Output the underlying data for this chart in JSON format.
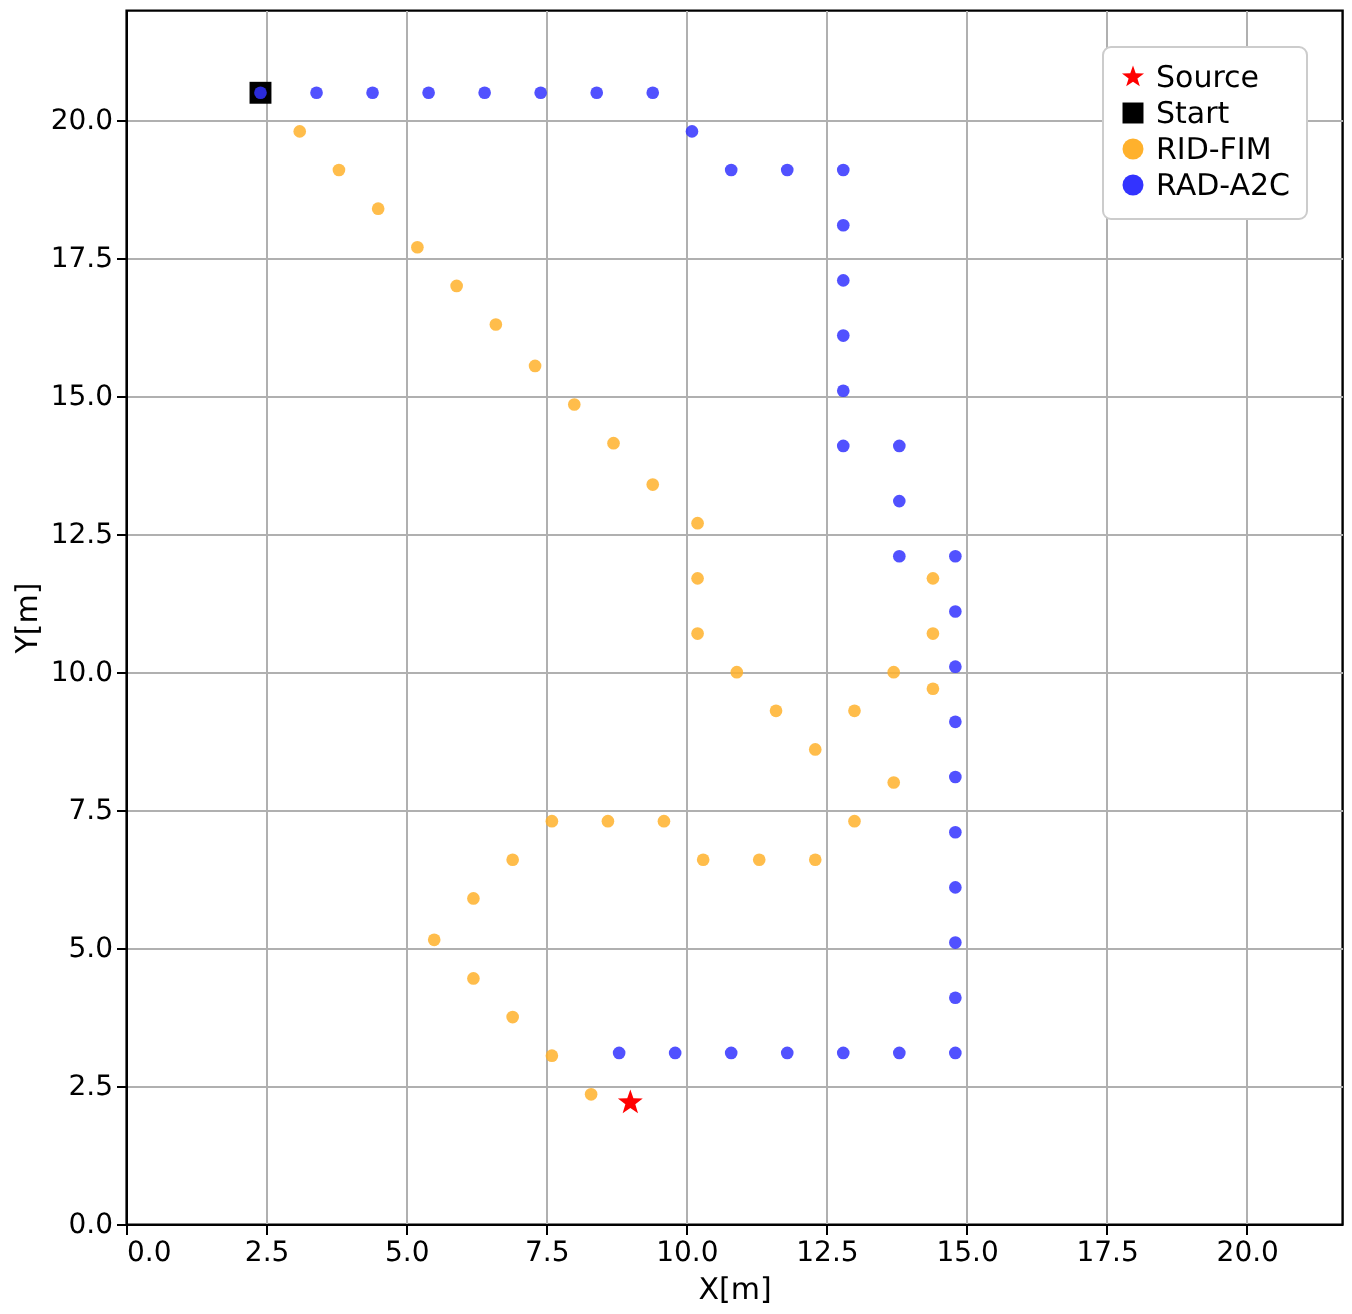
{
  "chart_data": {
    "type": "scatter",
    "xlabel": "X[m]",
    "ylabel": "Y[m]",
    "xlim": [
      0,
      21.7
    ],
    "ylim": [
      0,
      22
    ],
    "xticks": [
      {
        "value": 0,
        "label": "0.0"
      },
      2.5,
      {
        "value": 5,
        "label": "5.0"
      },
      7.5,
      {
        "value": 10,
        "label": "10.0"
      },
      12.5,
      {
        "value": 15,
        "label": "15.0"
      },
      17.5,
      {
        "value": 20,
        "label": "20.0"
      }
    ],
    "yticks": [
      {
        "value": 0,
        "label": "0.0"
      },
      2.5,
      {
        "value": 5,
        "label": "5.0"
      },
      7.5,
      {
        "value": 10,
        "label": "10.0"
      },
      12.5,
      {
        "value": 15,
        "label": "15.0"
      },
      17.5,
      {
        "value": 20,
        "label": "20.0"
      }
    ],
    "grid": true,
    "legend": "top right",
    "series": [
      {
        "name": "Source",
        "color": "#ff0000",
        "marker": "star",
        "x": [
          9.0
        ],
        "values": [
          2.2
        ]
      },
      {
        "name": "Start",
        "color": "#000000",
        "marker": "square",
        "x": [
          2.4
        ],
        "values": [
          20.5
        ]
      },
      {
        "name": "RID-FIM",
        "color": "#ffb12c",
        "marker": "circle",
        "x": [
          3.1,
          3.8,
          4.5,
          5.2,
          5.9,
          6.6,
          7.3,
          8.0,
          8.7,
          9.4,
          10.2,
          10.2,
          10.2,
          10.9,
          11.6,
          12.3,
          13.0,
          13.7,
          14.4,
          14.4,
          14.4,
          13.7,
          13.0,
          12.3,
          11.3,
          10.3,
          9.6,
          8.6,
          7.6,
          6.9,
          6.2,
          5.5,
          6.2,
          6.9,
          7.6,
          8.3
        ],
        "values": [
          19.8,
          19.1,
          18.4,
          17.7,
          17.0,
          16.3,
          15.55,
          14.85,
          14.15,
          13.4,
          12.7,
          11.7,
          10.7,
          10.0,
          9.3,
          8.6,
          9.3,
          10.0,
          10.7,
          11.7,
          9.7,
          8.0,
          7.3,
          6.6,
          6.6,
          6.6,
          7.3,
          7.3,
          7.3,
          6.6,
          5.9,
          5.15,
          4.45,
          3.75,
          3.05,
          2.35
        ]
      },
      {
        "name": "RAD-A2C",
        "color": "#3333ff",
        "marker": "circle",
        "x": [
          2.4,
          3.4,
          4.4,
          5.4,
          6.4,
          7.4,
          8.4,
          9.4,
          10.1,
          10.8,
          11.8,
          12.8,
          12.8,
          12.8,
          12.8,
          12.8,
          12.8,
          13.8,
          13.8,
          13.8,
          14.8,
          14.8,
          14.8,
          14.8,
          14.8,
          14.8,
          14.8,
          14.8,
          14.8,
          14.8,
          13.8,
          12.8,
          11.8,
          10.8,
          9.8,
          8.8
        ],
        "values": [
          20.5,
          20.5,
          20.5,
          20.5,
          20.5,
          20.5,
          20.5,
          20.5,
          19.8,
          19.1,
          19.1,
          19.1,
          18.1,
          17.1,
          16.1,
          15.1,
          14.1,
          14.1,
          13.1,
          12.1,
          12.1,
          11.1,
          10.1,
          9.1,
          8.1,
          7.1,
          6.1,
          5.1,
          4.1,
          3.1,
          3.1,
          3.1,
          3.1,
          3.1,
          3.1,
          3.1
        ]
      }
    ]
  }
}
